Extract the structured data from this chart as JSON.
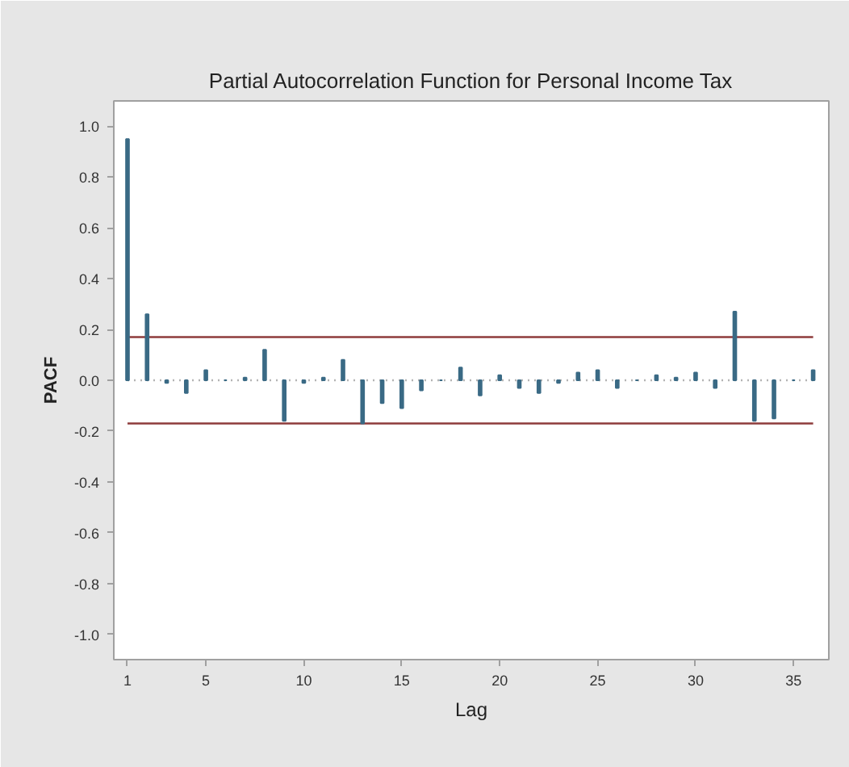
{
  "chart_data": {
    "type": "bar",
    "title": "Partial Autocorrelation Function for Personal Income Tax",
    "xlabel": "Lag",
    "ylabel": "PACF",
    "x": [
      1,
      2,
      3,
      4,
      5,
      6,
      7,
      8,
      9,
      10,
      11,
      12,
      13,
      14,
      15,
      16,
      17,
      18,
      19,
      20,
      21,
      22,
      23,
      24,
      25,
      26,
      27,
      28,
      29,
      30,
      31,
      32,
      33,
      34,
      35,
      36
    ],
    "values": [
      0.95,
      0.26,
      -0.01,
      -0.05,
      0.04,
      0.0,
      0.01,
      0.12,
      -0.16,
      -0.01,
      0.01,
      0.08,
      -0.17,
      -0.09,
      -0.11,
      -0.04,
      0.0,
      0.05,
      -0.06,
      0.02,
      -0.03,
      -0.05,
      -0.01,
      0.03,
      0.04,
      -0.03,
      0.0,
      0.02,
      0.01,
      0.03,
      -0.03,
      0.27,
      -0.16,
      -0.15,
      0.0,
      0.04
    ],
    "color": "#3a6a85",
    "xlim": [
      0.3,
      36.8
    ],
    "ylim": [
      -1.1,
      1.1
    ],
    "xticks": [
      1,
      5,
      10,
      15,
      20,
      25,
      30,
      35
    ],
    "yticks": [
      {
        "value": 1.0,
        "label": "1.0"
      },
      {
        "value": 0.8,
        "label": "0.8"
      },
      {
        "value": 0.6,
        "label": "0.6"
      },
      {
        "value": 0.4,
        "label": "0.4"
      },
      {
        "value": 0.2,
        "label": "0.2"
      },
      {
        "value": 0.0,
        "label": "0.0"
      },
      {
        "value": -0.2,
        "label": "-0.2"
      },
      {
        "value": -0.4,
        "label": "-0.4"
      },
      {
        "value": -0.6,
        "label": "-0.6"
      },
      {
        "value": -0.8,
        "label": "-0.8"
      },
      {
        "value": -1.0,
        "label": "-1.0"
      }
    ],
    "ref_lines": [
      {
        "axis": "y",
        "value": 0.17,
        "color": "#8e3b3b",
        "line_style": "solid"
      },
      {
        "axis": "y",
        "value": -0.17,
        "color": "#8e3b3b",
        "line_style": "solid"
      },
      {
        "axis": "y",
        "value": 0.0,
        "color": "#b4b4b4",
        "line_style": "dotted"
      }
    ]
  }
}
